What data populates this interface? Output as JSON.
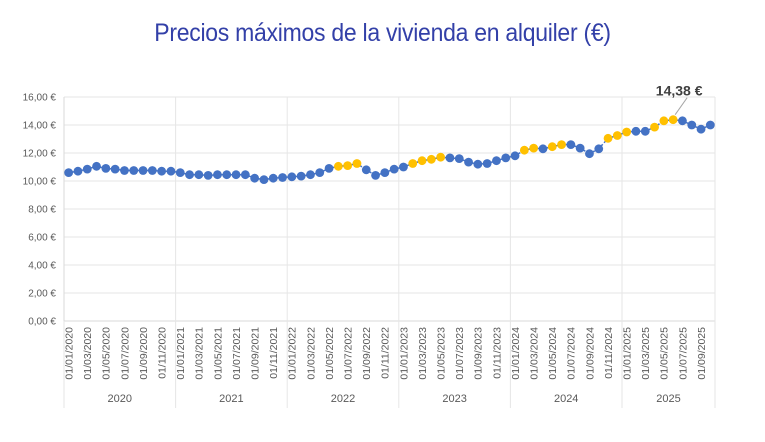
{
  "chart_data": {
    "type": "line",
    "title": "Precios máximos de la vivienda en alquiler (€)",
    "xlabel": "",
    "ylabel": "",
    "ylim": [
      0,
      16
    ],
    "yticks": [
      "0,00 €",
      "2,00 €",
      "4,00 €",
      "6,00 €",
      "8,00 €",
      "10,00 €",
      "12,00 €",
      "14,00 €",
      "16,00 €"
    ],
    "ytick_values": [
      0,
      2,
      4,
      6,
      8,
      10,
      12,
      14,
      16
    ],
    "grid": true,
    "legend": "none",
    "x_tick_labels": [
      "01/01/2020",
      "01/03/2020",
      "01/05/2020",
      "01/07/2020",
      "01/09/2020",
      "01/11/2020",
      "01/01/2021",
      "01/03/2021",
      "01/05/2021",
      "01/07/2021",
      "01/09/2021",
      "01/11/2021",
      "01/01/2022",
      "01/03/2022",
      "01/05/2022",
      "01/07/2022",
      "01/09/2022",
      "01/11/2022",
      "01/01/2023",
      "01/03/2023",
      "01/05/2023",
      "01/07/2023",
      "01/09/2023",
      "01/11/2023",
      "01/01/2024",
      "01/03/2024",
      "01/05/2024",
      "01/07/2024",
      "01/09/2024",
      "01/11/2024",
      "01/01/2025",
      "01/03/2025",
      "01/05/2025",
      "01/07/2025",
      "01/09/2025"
    ],
    "year_groups": [
      "2020",
      "2021",
      "2022",
      "2023",
      "2024",
      "2025"
    ],
    "x": [
      "2020-01",
      "2020-02",
      "2020-03",
      "2020-04",
      "2020-05",
      "2020-06",
      "2020-07",
      "2020-08",
      "2020-09",
      "2020-10",
      "2020-11",
      "2020-12",
      "2021-01",
      "2021-02",
      "2021-03",
      "2021-04",
      "2021-05",
      "2021-06",
      "2021-07",
      "2021-08",
      "2021-09",
      "2021-10",
      "2021-11",
      "2021-12",
      "2022-01",
      "2022-02",
      "2022-03",
      "2022-04",
      "2022-05",
      "2022-06",
      "2022-07",
      "2022-08",
      "2022-09",
      "2022-10",
      "2022-11",
      "2022-12",
      "2023-01",
      "2023-02",
      "2023-03",
      "2023-04",
      "2023-05",
      "2023-06",
      "2023-07",
      "2023-08",
      "2023-09",
      "2023-10",
      "2023-11",
      "2023-12",
      "2024-01",
      "2024-02",
      "2024-03",
      "2024-04",
      "2024-05",
      "2024-06",
      "2024-07",
      "2024-08",
      "2024-09",
      "2024-10",
      "2024-11",
      "2024-12",
      "2025-01",
      "2025-02",
      "2025-03",
      "2025-04",
      "2025-05",
      "2025-06",
      "2025-07",
      "2025-08",
      "2025-09",
      "2025-10"
    ],
    "series": [
      {
        "name": "Precio máximo",
        "values": [
          10.6,
          10.7,
          10.85,
          11.05,
          10.9,
          10.85,
          10.75,
          10.75,
          10.75,
          10.75,
          10.7,
          10.7,
          10.6,
          10.45,
          10.45,
          10.4,
          10.45,
          10.45,
          10.45,
          10.45,
          10.2,
          10.1,
          10.2,
          10.25,
          10.3,
          10.35,
          10.45,
          10.6,
          10.9,
          11.05,
          11.1,
          11.25,
          10.8,
          10.4,
          10.6,
          10.85,
          11.0,
          11.25,
          11.45,
          11.55,
          11.7,
          11.65,
          11.6,
          11.35,
          11.2,
          11.25,
          11.45,
          11.65,
          11.8,
          12.2,
          12.35,
          12.3,
          12.45,
          12.6,
          12.6,
          12.35,
          11.95,
          12.3,
          13.05,
          13.25,
          13.5,
          13.55,
          13.55,
          13.85,
          14.3,
          14.38,
          14.3,
          14.0,
          13.7,
          14.0
        ],
        "highlight": [
          false,
          false,
          false,
          false,
          false,
          false,
          false,
          false,
          false,
          false,
          false,
          false,
          false,
          false,
          false,
          false,
          false,
          false,
          false,
          false,
          false,
          false,
          false,
          false,
          false,
          false,
          false,
          false,
          false,
          true,
          true,
          true,
          false,
          false,
          false,
          false,
          false,
          true,
          true,
          true,
          true,
          false,
          false,
          false,
          false,
          false,
          false,
          false,
          false,
          true,
          true,
          false,
          true,
          true,
          false,
          false,
          false,
          false,
          true,
          true,
          true,
          false,
          false,
          true,
          true,
          true,
          false,
          false,
          false,
          false
        ]
      }
    ],
    "colors": {
      "normal": "#4472c4",
      "highlight": "#ffc000",
      "grid": "#e6e6e6",
      "axis": "#d9d9d9"
    },
    "annotation": {
      "label": "14,38 €",
      "index": 65
    }
  }
}
